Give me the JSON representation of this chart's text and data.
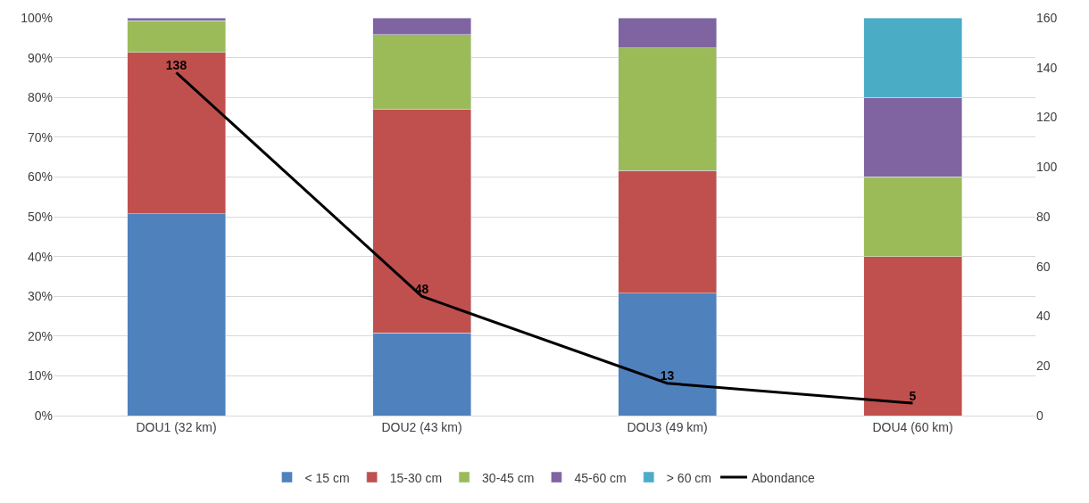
{
  "chart_data": {
    "type": "bar",
    "stacked": true,
    "categories": [
      "DOU1 (32 km)",
      "DOU2 (43 km)",
      "DOU3 (49 km)",
      "DOU4 (60 km)"
    ],
    "series": [
      {
        "name": "< 15 cm",
        "color": "#4f81bd",
        "values": [
          50.7,
          20.8,
          30.8,
          null
        ]
      },
      {
        "name": "15-30 cm",
        "color": "#c0504d",
        "values": [
          40.6,
          56.3,
          30.8,
          40
        ]
      },
      {
        "name": "30-45 cm",
        "color": "#9bbb59",
        "values": [
          8.0,
          18.7,
          30.8,
          20
        ]
      },
      {
        "name": "45-60 cm",
        "color": "#8064a2",
        "values": [
          0.7,
          4.2,
          7.6,
          20
        ]
      },
      {
        "name": "> 60 cm",
        "color": "#4bacc6",
        "values": [
          null,
          null,
          null,
          20
        ]
      },
      {
        "name": "Abondance",
        "type": "line",
        "axis": "y2",
        "color": "#000000",
        "values": [
          138,
          48,
          13,
          5
        ],
        "value_labels": [
          "138",
          "48",
          "13",
          "5"
        ]
      }
    ],
    "ylim": [
      0,
      100
    ],
    "yticks": [
      {
        "value": 0,
        "label": "0%"
      },
      {
        "value": 10,
        "label": "10%"
      },
      {
        "value": 20,
        "label": "20%"
      },
      {
        "value": 30,
        "label": "30%"
      },
      {
        "value": 40,
        "label": "40%"
      },
      {
        "value": 50,
        "label": "50%"
      },
      {
        "value": 60,
        "label": "60%"
      },
      {
        "value": 70,
        "label": "70%"
      },
      {
        "value": 80,
        "label": "80%"
      },
      {
        "value": 90,
        "label": "90%"
      },
      {
        "value": 100,
        "label": "100%"
      }
    ],
    "y2lim": [
      0,
      160
    ],
    "y2ticks": [
      0,
      20,
      40,
      60,
      80,
      100,
      120,
      140,
      160
    ],
    "grid": "y",
    "legend": "bottom"
  }
}
